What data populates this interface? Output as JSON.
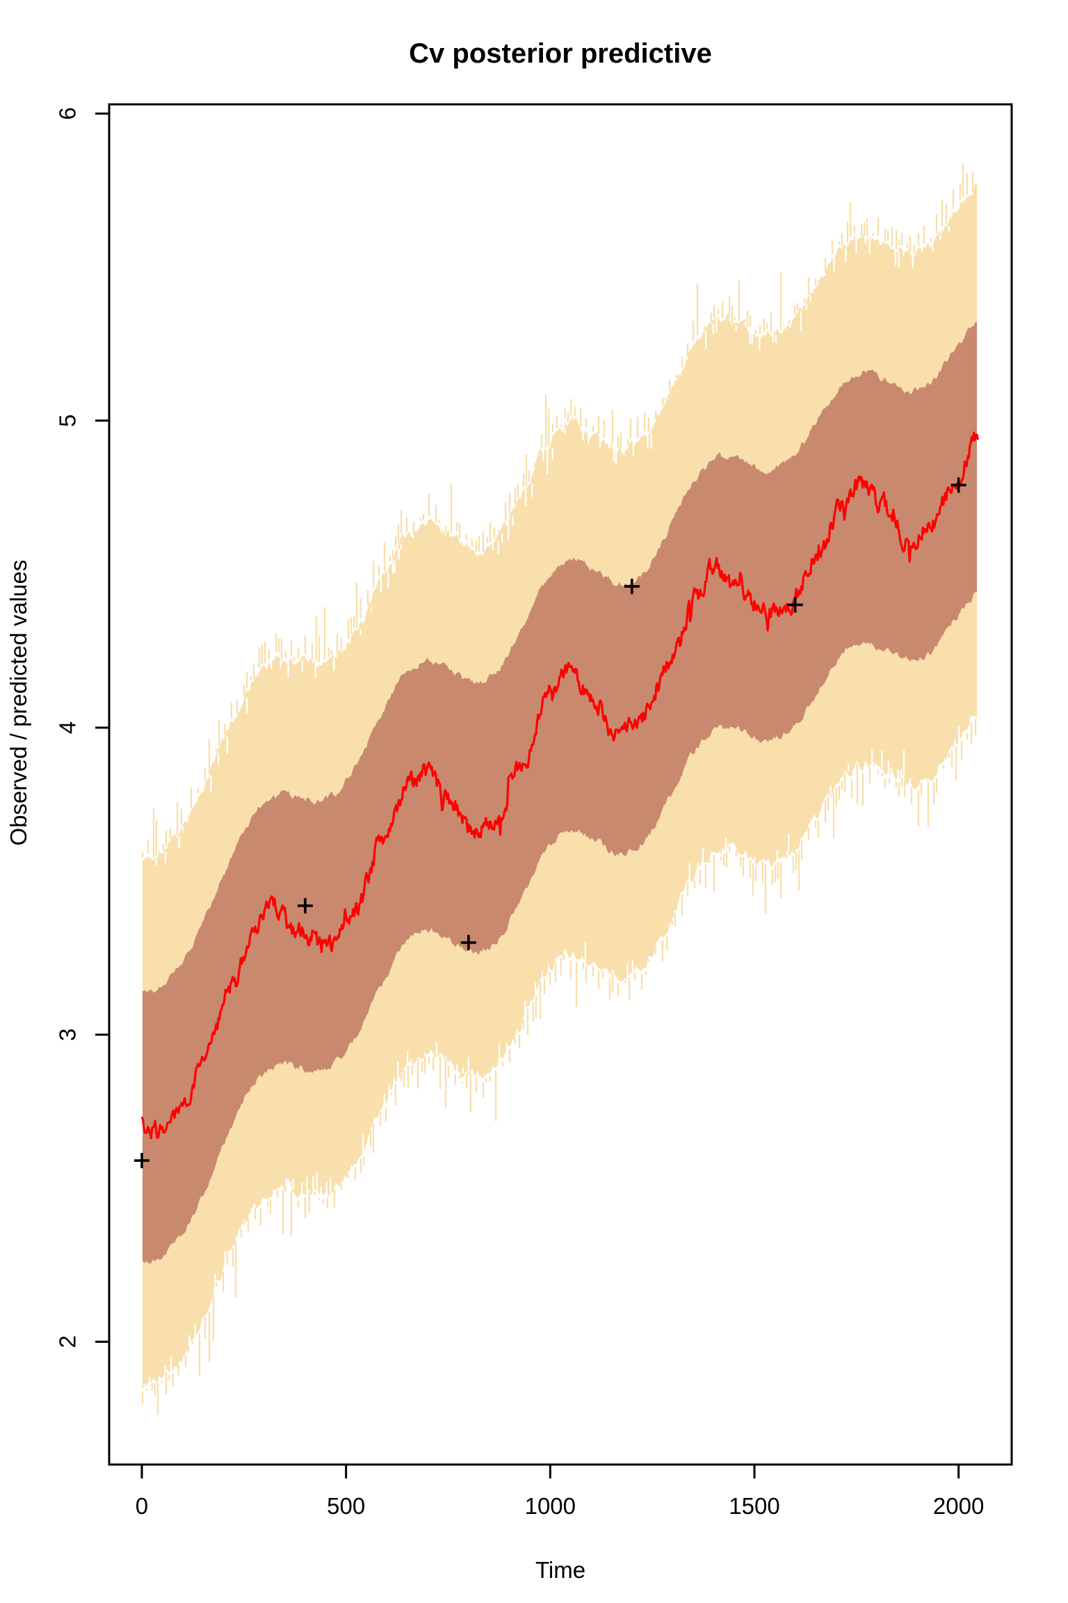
{
  "title": "Cv posterior predictive",
  "chart_data": {
    "type": "line",
    "title": "Cv posterior predictive",
    "xlabel": "Time",
    "ylabel": "Observed / predicted values",
    "x_ticks": [
      0,
      500,
      1000,
      1500,
      2000
    ],
    "y_ticks": [
      2,
      3,
      4,
      5,
      6
    ],
    "xlim": [
      -80,
      2130
    ],
    "ylim": [
      1.6,
      6.03
    ],
    "grid": "off",
    "legend": "none",
    "x_data_range": [
      0,
      2048
    ],
    "series": [
      {
        "name": "posterior predictive mean",
        "style": "noisy-line",
        "color": "#FF0000",
        "x": [
          0,
          50,
          100,
          160,
          220,
          280,
          320,
          380,
          450,
          520,
          590,
          660,
          700,
          750,
          810,
          870,
          930,
          1000,
          1045,
          1100,
          1165,
          1220,
          1290,
          1360,
          1400,
          1460,
          1530,
          1580,
          1650,
          1720,
          1760,
          1820,
          1880,
          1930,
          1990,
          2048
        ],
        "y": [
          2.71,
          2.68,
          2.77,
          2.95,
          3.16,
          3.35,
          3.42,
          3.34,
          3.28,
          3.4,
          3.63,
          3.83,
          3.85,
          3.77,
          3.66,
          3.7,
          3.88,
          4.12,
          4.2,
          4.1,
          3.98,
          4.02,
          4.2,
          4.43,
          4.53,
          4.45,
          4.37,
          4.39,
          4.55,
          4.74,
          4.8,
          4.71,
          4.6,
          4.66,
          4.79,
          4.96
        ]
      }
    ],
    "bands": [
      {
        "name": "outer credible band",
        "color": "#F8DFAC",
        "upper_offset": 0.87,
        "lower_offset": 0.85,
        "edge_style": "fuzzy-strands"
      },
      {
        "name": "inner credible band",
        "color": "#C8896F",
        "upper_offset": 0.43,
        "lower_offset": 0.45,
        "edge_style": "ragged"
      }
    ],
    "observed_points": {
      "name": "observed values",
      "marker": "+",
      "color": "#000000",
      "x": [
        0,
        400,
        800,
        1200,
        1600,
        2000
      ],
      "y": [
        2.59,
        3.42,
        3.3,
        4.46,
        4.4,
        4.79
      ]
    },
    "colors": {
      "mean_line": "#FF0000",
      "inner_band": "#C8896F",
      "outer_band": "#F8DFAC",
      "axis": "#000000",
      "background": "#FFFFFF"
    }
  }
}
